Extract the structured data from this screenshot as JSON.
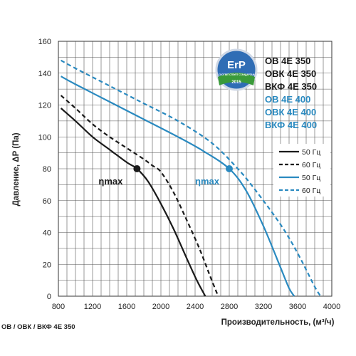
{
  "chart_data": {
    "type": "line",
    "xlabel": "Производительность, (м³/ч)",
    "ylabel": "Давление, ΔP (Па)",
    "xlim": [
      800,
      4000
    ],
    "ylim": [
      0,
      160
    ],
    "xticks": [
      "800",
      "1200",
      "1600",
      "2000",
      "2400",
      "2800",
      "3200",
      "3600",
      "4000"
    ],
    "yticks": [
      "0",
      "20",
      "40",
      "60",
      "80",
      "100",
      "120",
      "140",
      "160"
    ],
    "grid": true,
    "models": [
      {
        "label": "ОВ 4Е 350",
        "color": "#1a1a1a"
      },
      {
        "label": "ОВК 4Е 350",
        "color": "#1a1a1a"
      },
      {
        "label": "ВКФ 4Е 350",
        "color": "#1a1a1a"
      },
      {
        "label": "ОВ 4Е 400",
        "color": "#2a8ac0"
      },
      {
        "label": "ОВК 4Е 400",
        "color": "#2a8ac0"
      },
      {
        "label": "ВКФ 4Е 400",
        "color": "#2a8ac0"
      }
    ],
    "legend": [
      {
        "label": "50 Гц",
        "color": "#1a1a1a",
        "dash": false
      },
      {
        "label": "60 Гц",
        "color": "#1a1a1a",
        "dash": true
      },
      {
        "label": "50 Гц",
        "color": "#2a8ac0",
        "dash": false
      },
      {
        "label": "60 Гц",
        "color": "#2a8ac0",
        "dash": true
      }
    ],
    "series": [
      {
        "color": "#1a1a1a",
        "dash": false,
        "points": [
          [
            830,
            118
          ],
          [
            1000,
            110
          ],
          [
            1200,
            100
          ],
          [
            1400,
            92
          ],
          [
            1600,
            84
          ],
          [
            1720,
            80
          ],
          [
            1850,
            72
          ],
          [
            2000,
            58
          ],
          [
            2150,
            42
          ],
          [
            2300,
            24
          ],
          [
            2420,
            10
          ],
          [
            2520,
            0
          ]
        ]
      },
      {
        "color": "#1a1a1a",
        "dash": true,
        "points": [
          [
            830,
            126
          ],
          [
            1000,
            118
          ],
          [
            1200,
            108
          ],
          [
            1400,
            100
          ],
          [
            1600,
            93
          ],
          [
            1800,
            86
          ],
          [
            1900,
            82
          ],
          [
            2000,
            78
          ],
          [
            2150,
            65
          ],
          [
            2300,
            48
          ],
          [
            2450,
            30
          ],
          [
            2580,
            12
          ],
          [
            2670,
            0
          ]
        ]
      },
      {
        "color": "#2a8ac0",
        "dash": false,
        "points": [
          [
            830,
            138
          ],
          [
            1000,
            133
          ],
          [
            1400,
            122
          ],
          [
            1800,
            111
          ],
          [
            2200,
            100
          ],
          [
            2500,
            91
          ],
          [
            2800,
            80
          ],
          [
            3000,
            66
          ],
          [
            3200,
            44
          ],
          [
            3400,
            18
          ],
          [
            3500,
            5
          ],
          [
            3560,
            0
          ]
        ]
      },
      {
        "color": "#2a8ac0",
        "dash": true,
        "points": [
          [
            830,
            148
          ],
          [
            1000,
            143
          ],
          [
            1400,
            132
          ],
          [
            1800,
            121
          ],
          [
            2200,
            110
          ],
          [
            2600,
            96
          ],
          [
            2900,
            80
          ],
          [
            3100,
            67
          ],
          [
            3400,
            45
          ],
          [
            3600,
            27
          ],
          [
            3800,
            6
          ],
          [
            3870,
            0
          ]
        ]
      }
    ],
    "annotations": [
      {
        "text": "ηmax",
        "x": 1720,
        "y": 80,
        "color": "#1a1a1a"
      },
      {
        "text": "ηmax",
        "x": 2800,
        "y": 80,
        "color": "#2a8ac0"
      }
    ],
    "footer": "ОВ / ОВК / ВКФ 4Е 350"
  },
  "badge": {
    "title": "ErP",
    "subtitle": "СООТВЕТСТВУЕТ СТАНДАРТАМ",
    "year": "2015",
    "colors": {
      "ring": "#2f6db5",
      "band": "#3a9a3a"
    }
  }
}
